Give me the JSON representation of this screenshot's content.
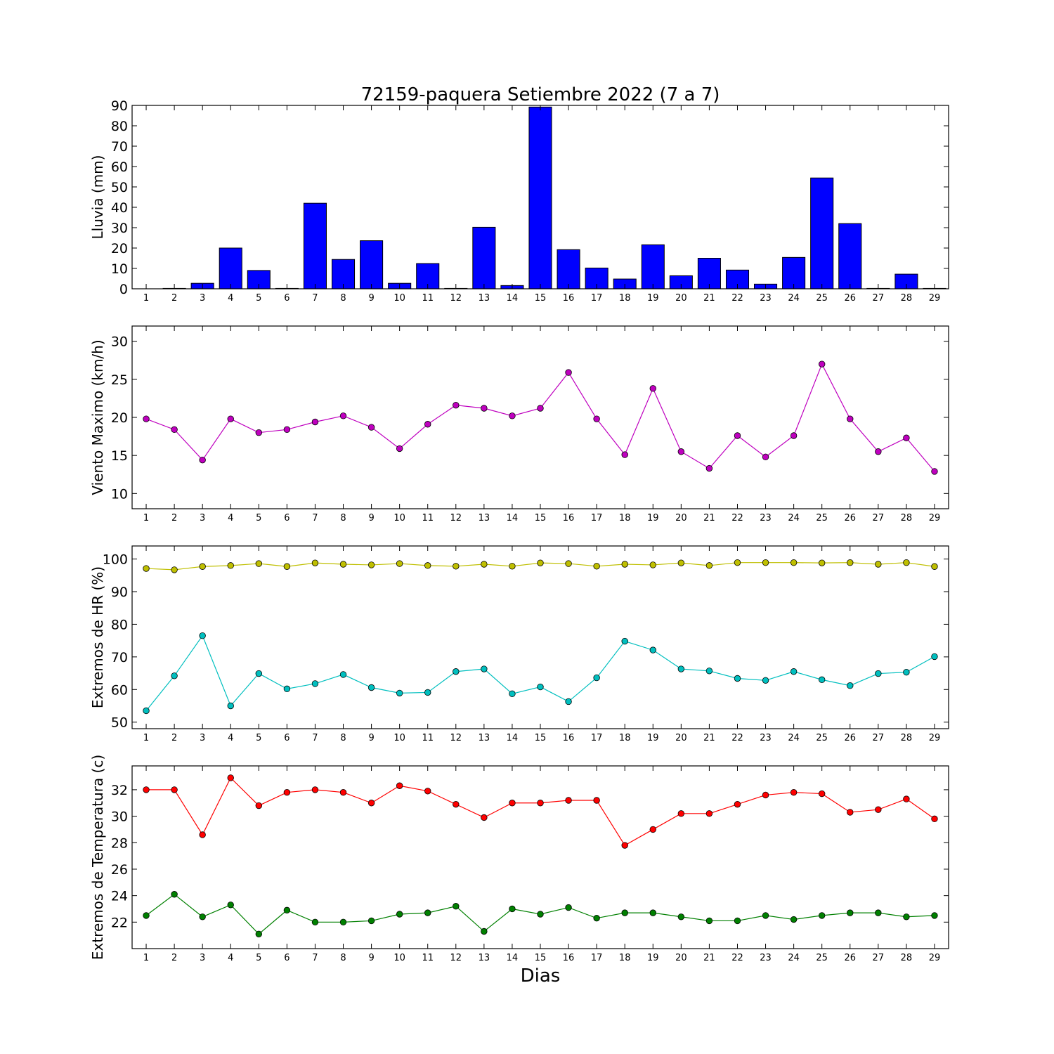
{
  "figure": {
    "title": "72159-paquera Setiembre 2022  (7 a 7)",
    "xlabel": "Dias"
  },
  "chart_data": [
    {
      "type": "bar",
      "ylabel": "Lluvia (mm)",
      "ylim": [
        0,
        90
      ],
      "yticks": [
        0,
        10,
        20,
        30,
        40,
        50,
        60,
        70,
        80,
        90
      ],
      "categories": [
        1,
        2,
        3,
        4,
        5,
        6,
        7,
        8,
        9,
        10,
        11,
        12,
        13,
        14,
        15,
        16,
        17,
        18,
        19,
        20,
        21,
        22,
        23,
        24,
        25,
        26,
        27,
        28,
        29
      ],
      "grid": false,
      "series": [
        {
          "color": "#0000ff",
          "values": [
            0,
            0.2,
            2.7,
            20,
            9,
            0.2,
            42,
            14.4,
            23.6,
            2.7,
            12.4,
            0.2,
            30.2,
            1.6,
            89.2,
            19.2,
            10.2,
            4.8,
            21.6,
            6.4,
            15,
            9.2,
            2.3,
            15.4,
            54.4,
            32,
            0.2,
            7.2,
            0.2
          ]
        }
      ]
    },
    {
      "type": "line",
      "ylabel": "Viento Maximo (km/h)",
      "ylim": [
        8,
        32
      ],
      "yticks": [
        10,
        15,
        20,
        25,
        30
      ],
      "x": [
        1,
        2,
        3,
        4,
        5,
        6,
        7,
        8,
        9,
        10,
        11,
        12,
        13,
        14,
        15,
        16,
        17,
        18,
        19,
        20,
        21,
        22,
        23,
        24,
        25,
        26,
        27,
        28,
        29
      ],
      "grid": false,
      "series": [
        {
          "color": "#bf00bf",
          "values": [
            19.8,
            18.4,
            14.4,
            19.8,
            18.0,
            18.4,
            19.4,
            20.2,
            18.7,
            15.9,
            19.1,
            21.6,
            21.2,
            20.2,
            21.2,
            25.9,
            19.8,
            15.1,
            23.8,
            15.5,
            13.3,
            17.6,
            14.8,
            17.6,
            27.0,
            19.8,
            15.5,
            17.3,
            12.9
          ]
        }
      ]
    },
    {
      "type": "line",
      "ylabel": "Extremos de HR (%)",
      "ylim": [
        48,
        104
      ],
      "yticks": [
        50,
        60,
        70,
        80,
        90,
        100
      ],
      "x": [
        1,
        2,
        3,
        4,
        5,
        6,
        7,
        8,
        9,
        10,
        11,
        12,
        13,
        14,
        15,
        16,
        17,
        18,
        19,
        20,
        21,
        22,
        23,
        24,
        25,
        26,
        27,
        28,
        29
      ],
      "grid": false,
      "series": [
        {
          "color": "#bfbf00",
          "values": [
            97.1,
            96.7,
            97.7,
            98.0,
            98.6,
            97.7,
            98.8,
            98.4,
            98.2,
            98.6,
            98.0,
            97.8,
            98.4,
            97.8,
            98.8,
            98.6,
            97.8,
            98.4,
            98.2,
            98.8,
            98.0,
            98.9,
            98.9,
            98.9,
            98.8,
            98.9,
            98.4,
            98.9,
            97.7
          ]
        },
        {
          "color": "#00bfbf",
          "values": [
            53.5,
            64.2,
            76.5,
            55.0,
            64.9,
            60.2,
            61.8,
            64.6,
            60.6,
            58.9,
            59.1,
            65.5,
            66.3,
            58.7,
            60.8,
            56.3,
            63.6,
            74.8,
            72.1,
            66.3,
            65.7,
            63.4,
            62.8,
            65.5,
            63.0,
            61.2,
            64.9,
            65.3,
            70.1
          ]
        }
      ]
    },
    {
      "type": "line",
      "ylabel": "Extremos de Temperatura (c)",
      "ylim": [
        20,
        33.8
      ],
      "yticks": [
        22,
        24,
        26,
        28,
        30,
        32
      ],
      "x": [
        1,
        2,
        3,
        4,
        5,
        6,
        7,
        8,
        9,
        10,
        11,
        12,
        13,
        14,
        15,
        16,
        17,
        18,
        19,
        20,
        21,
        22,
        23,
        24,
        25,
        26,
        27,
        28,
        29
      ],
      "grid": false,
      "series": [
        {
          "color": "#ff0000",
          "values": [
            32.0,
            32.0,
            28.6,
            32.9,
            30.8,
            31.8,
            32.0,
            31.8,
            31.0,
            32.3,
            31.9,
            30.9,
            29.9,
            31.0,
            31.0,
            31.2,
            31.2,
            27.8,
            29.0,
            30.2,
            30.2,
            30.9,
            31.6,
            31.8,
            31.7,
            30.3,
            30.5,
            31.3,
            29.8
          ]
        },
        {
          "color": "#008000",
          "values": [
            22.5,
            24.1,
            22.4,
            23.3,
            21.1,
            22.9,
            22.0,
            22.0,
            22.1,
            22.6,
            22.7,
            23.2,
            21.3,
            23.0,
            22.6,
            23.1,
            22.3,
            22.7,
            22.7,
            22.4,
            22.1,
            22.1,
            22.5,
            22.2,
            22.5,
            22.7,
            22.7,
            22.4,
            22.5
          ]
        }
      ]
    }
  ]
}
